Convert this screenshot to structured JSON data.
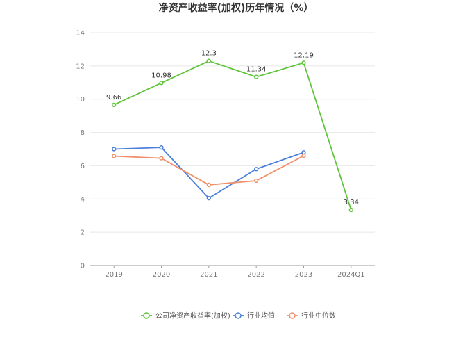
{
  "chart_data": {
    "type": "line",
    "title": "净资产收益率(加权)历年情况（%）",
    "xlabel": "",
    "ylabel": "",
    "categories": [
      "2019",
      "2020",
      "2021",
      "2022",
      "2023",
      "2024Q1"
    ],
    "ylim": [
      0,
      14
    ],
    "yticks": [
      "0",
      "2",
      "4",
      "6",
      "8",
      "10",
      "12",
      "14"
    ],
    "grid": true,
    "legend_position": "bottom",
    "series": [
      {
        "name": "公司净资产收益率(加权)",
        "color": "#5fc43a",
        "values": [
          9.66,
          10.98,
          12.3,
          11.34,
          12.19,
          3.34
        ],
        "labels": [
          "9.66",
          "10.98",
          "12.3",
          "11.34",
          "12.19",
          "3.34"
        ]
      },
      {
        "name": "行业均值",
        "color": "#4a7fdc",
        "values": [
          7.0,
          7.1,
          4.05,
          5.8,
          6.8,
          null
        ]
      },
      {
        "name": "行业中位数",
        "color": "#f0906a",
        "values": [
          6.58,
          6.45,
          4.85,
          5.1,
          6.6,
          null
        ]
      }
    ]
  }
}
